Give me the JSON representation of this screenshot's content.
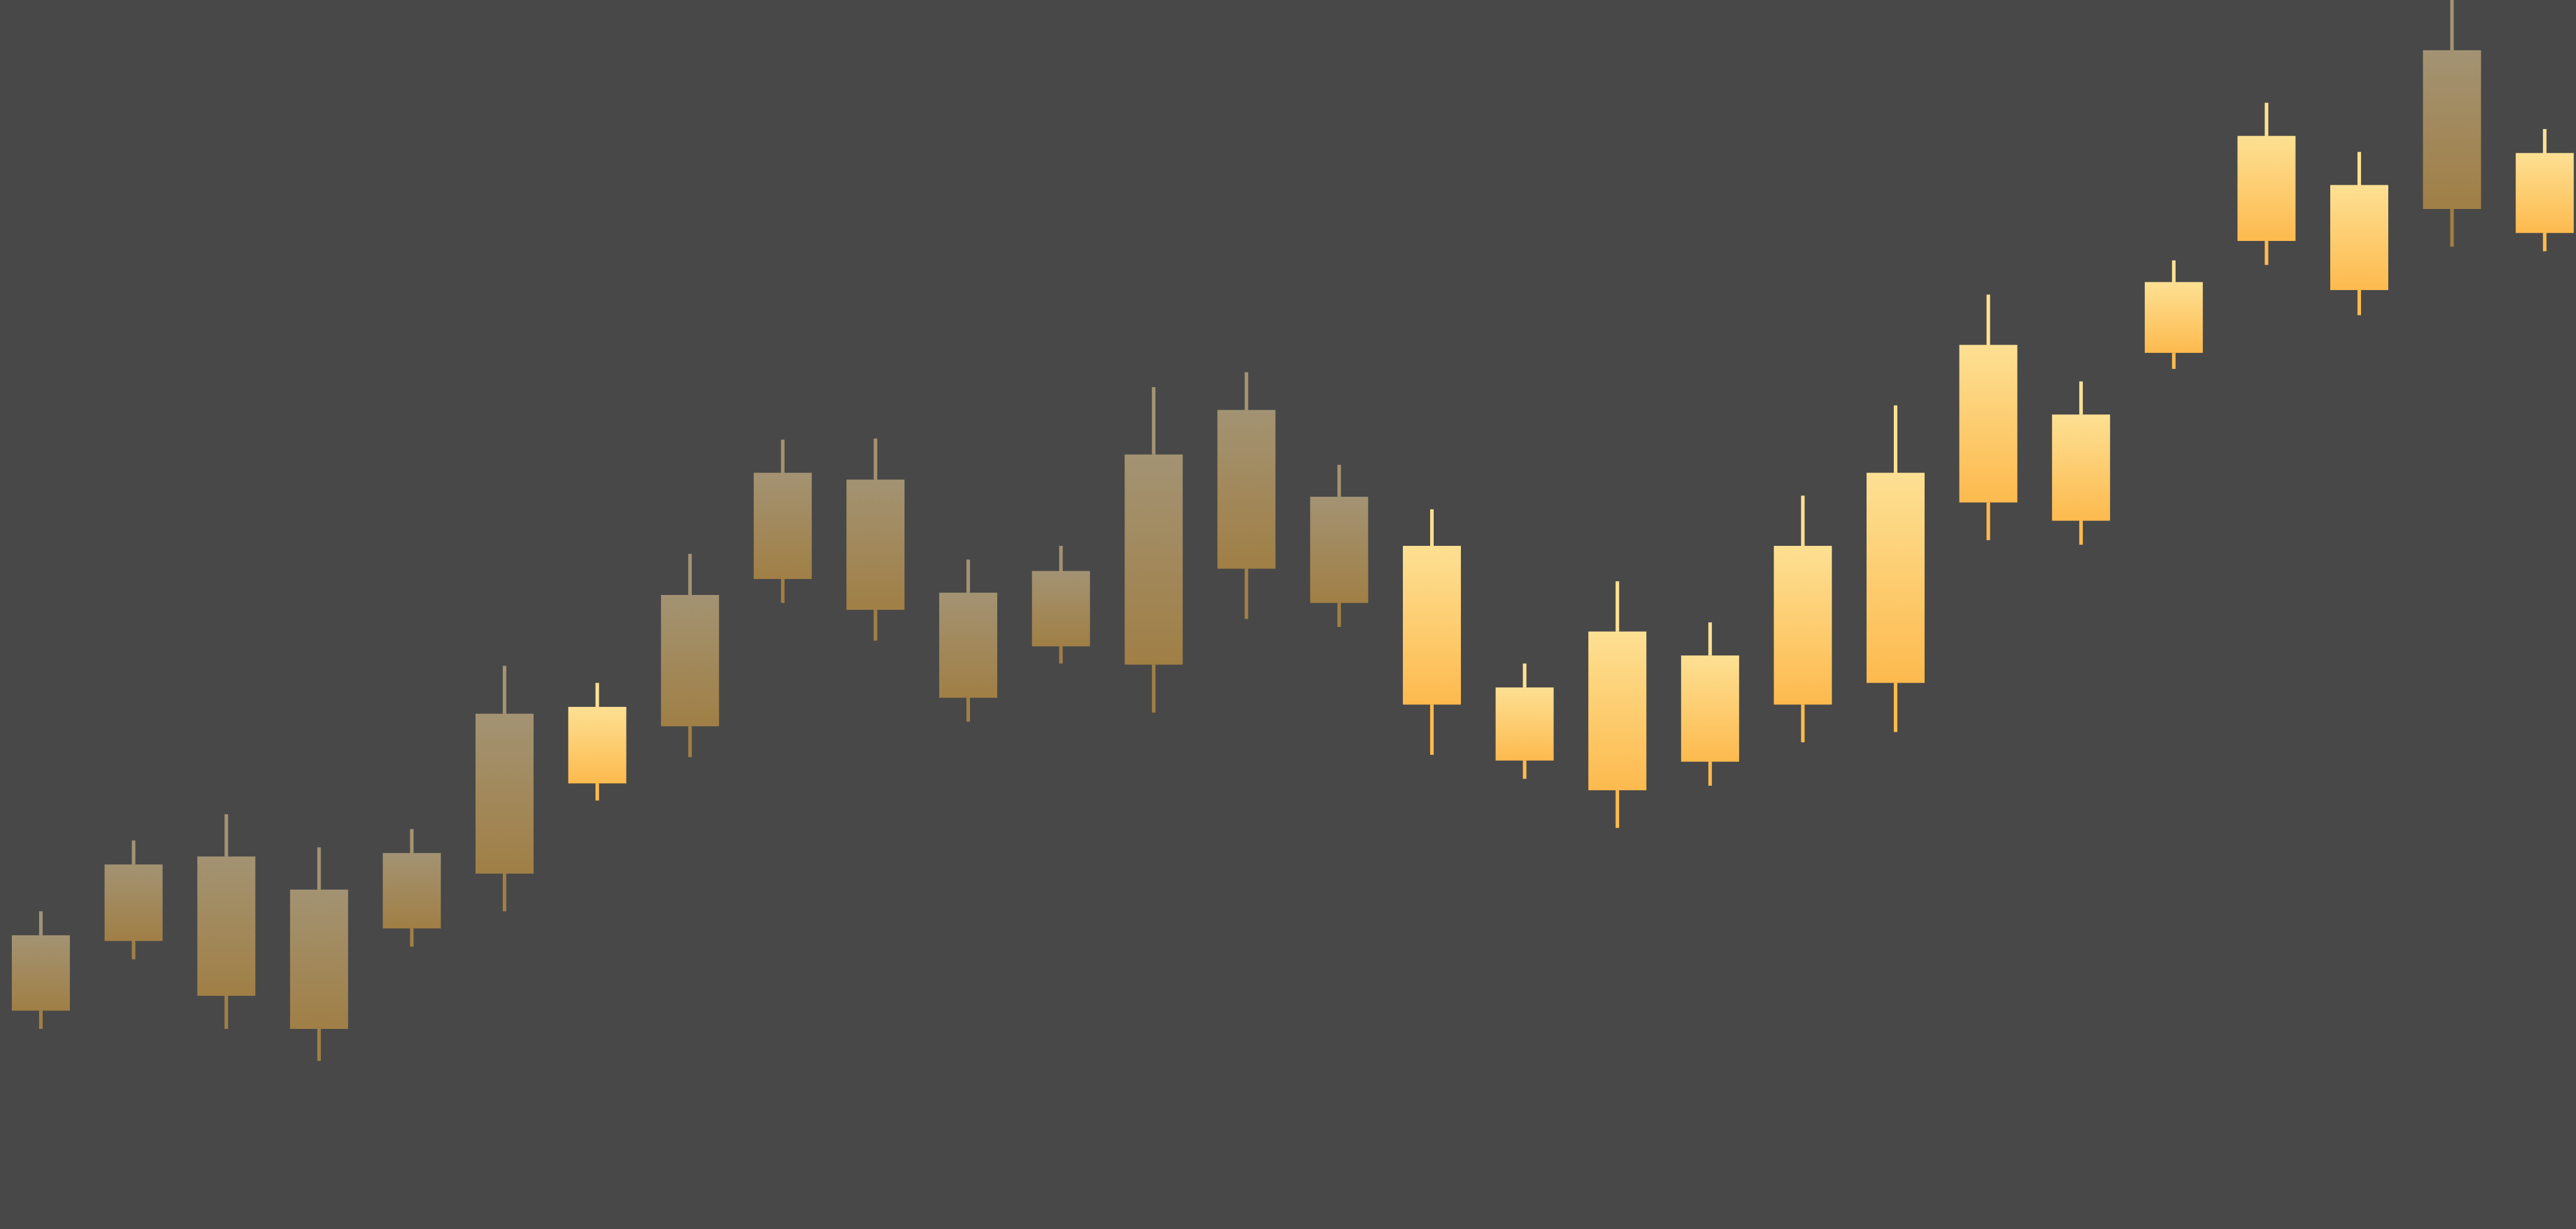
{
  "colors": {
    "background": "#484848",
    "dim_top": "#a39373",
    "dim_bottom": "#a07f45",
    "bright_top": "#fde093",
    "bright_bottom": "#fdba4e"
  },
  "chart_data": {
    "type": "candlestick",
    "title": "",
    "xlabel": "",
    "ylabel": "",
    "axes_visible": false,
    "grid": false,
    "legend": "none",
    "ylim": [
      0,
      100
    ],
    "candles": [
      {
        "high": 20.2,
        "top": 18.1,
        "bottom": 11.5,
        "low": 9.9,
        "style": "dim"
      },
      {
        "high": 26.4,
        "top": 24.3,
        "bottom": 17.6,
        "low": 16.0,
        "style": "dim"
      },
      {
        "high": 28.7,
        "top": 25.0,
        "bottom": 12.8,
        "low": 9.9,
        "style": "dim"
      },
      {
        "high": 25.8,
        "top": 22.1,
        "bottom": 9.9,
        "low": 7.1,
        "style": "dim"
      },
      {
        "high": 27.4,
        "top": 25.3,
        "bottom": 18.7,
        "low": 17.1,
        "style": "dim"
      },
      {
        "high": 41.7,
        "top": 37.5,
        "bottom": 23.5,
        "low": 20.2,
        "style": "dim"
      },
      {
        "high": 40.2,
        "top": 38.1,
        "bottom": 31.4,
        "low": 29.9,
        "style": "bright"
      },
      {
        "high": 51.5,
        "top": 47.9,
        "bottom": 36.4,
        "low": 33.7,
        "style": "dim"
      },
      {
        "high": 61.5,
        "top": 58.6,
        "bottom": 49.3,
        "low": 47.2,
        "style": "dim"
      },
      {
        "high": 61.6,
        "top": 58.0,
        "bottom": 46.6,
        "low": 43.9,
        "style": "dim"
      },
      {
        "high": 51.0,
        "top": 48.1,
        "bottom": 38.9,
        "low": 36.8,
        "style": "dim"
      },
      {
        "high": 52.2,
        "top": 50.0,
        "bottom": 43.4,
        "low": 41.9,
        "style": "dim"
      },
      {
        "high": 66.1,
        "top": 60.2,
        "bottom": 41.8,
        "low": 37.6,
        "style": "dim"
      },
      {
        "high": 67.4,
        "top": 64.1,
        "bottom": 50.2,
        "low": 45.8,
        "style": "dim"
      },
      {
        "high": 59.3,
        "top": 56.5,
        "bottom": 47.2,
        "low": 45.1,
        "style": "dim"
      },
      {
        "high": 55.4,
        "top": 52.2,
        "bottom": 38.3,
        "low": 33.9,
        "style": "bright"
      },
      {
        "high": 41.9,
        "top": 39.8,
        "bottom": 33.4,
        "low": 31.8,
        "style": "bright"
      },
      {
        "high": 49.1,
        "top": 44.7,
        "bottom": 30.8,
        "low": 27.5,
        "style": "bright"
      },
      {
        "high": 45.5,
        "top": 42.6,
        "bottom": 33.3,
        "low": 31.2,
        "style": "bright"
      },
      {
        "high": 56.6,
        "top": 52.2,
        "bottom": 38.3,
        "low": 35.0,
        "style": "bright"
      },
      {
        "high": 64.5,
        "top": 58.6,
        "bottom": 40.2,
        "low": 35.9,
        "style": "bright"
      },
      {
        "high": 74.2,
        "top": 69.8,
        "bottom": 56.0,
        "low": 52.7,
        "style": "bright"
      },
      {
        "high": 66.6,
        "top": 63.7,
        "bottom": 54.4,
        "low": 52.3,
        "style": "bright"
      },
      {
        "high": 77.2,
        "top": 75.3,
        "bottom": 69.1,
        "low": 67.7,
        "style": "bright"
      },
      {
        "high": 91.0,
        "top": 88.1,
        "bottom": 78.9,
        "low": 76.8,
        "style": "bright"
      },
      {
        "high": 86.7,
        "top": 83.8,
        "bottom": 74.6,
        "low": 72.4,
        "style": "bright"
      },
      {
        "high": 100.0,
        "top": 95.6,
        "bottom": 81.7,
        "low": 78.4,
        "style": "dim"
      },
      {
        "high": 88.7,
        "top": 86.6,
        "bottom": 79.6,
        "low": 78.0,
        "style": "bright"
      }
    ]
  }
}
